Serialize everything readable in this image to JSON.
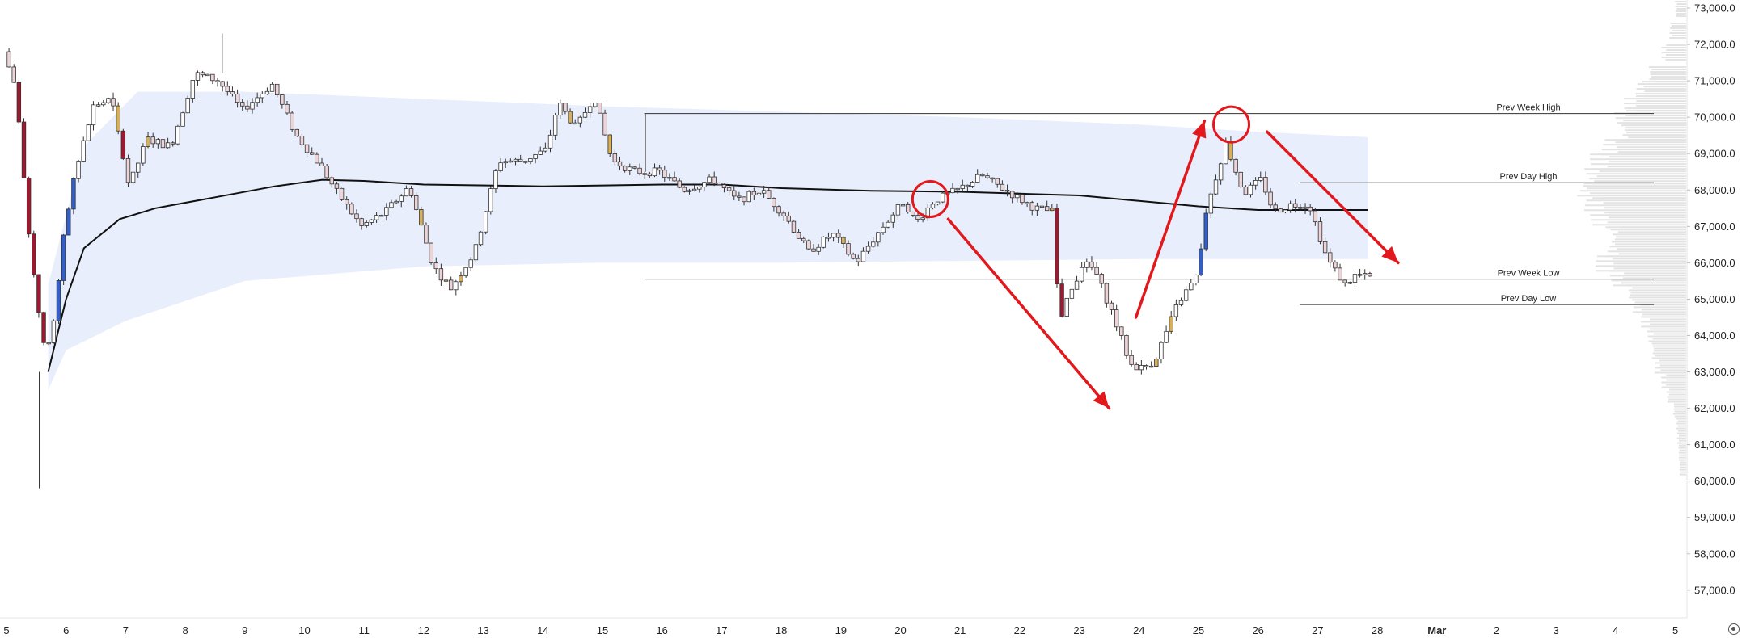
{
  "chart_data": {
    "type": "candlestick",
    "y_axis": {
      "ticks": [
        "73,000.0",
        "72,000.0",
        "71,000.0",
        "70,000.0",
        "69,000.0",
        "68,000.0",
        "67,000.0",
        "66,000.0",
        "65,000.0",
        "64,000.0",
        "63,000.0",
        "62,000.0",
        "61,000.0",
        "60,000.0",
        "59,000.0",
        "58,000.0",
        "57,000.0"
      ],
      "tick_values": [
        73000,
        72000,
        71000,
        70000,
        69000,
        68000,
        67000,
        66000,
        65000,
        64000,
        63000,
        62000,
        61000,
        60000,
        59000,
        58000,
        57000
      ],
      "range": [
        56400,
        73300
      ],
      "position": "right"
    },
    "x_axis": {
      "ticks": [
        "5",
        "6",
        "7",
        "8",
        "9",
        "10",
        "11",
        "12",
        "13",
        "14",
        "15",
        "16",
        "17",
        "18",
        "19",
        "20",
        "21",
        "22",
        "23",
        "24",
        "25",
        "26",
        "27",
        "28",
        "Mar",
        "2",
        "3",
        "4",
        "5"
      ],
      "range_days": [
        5,
        33.1
      ]
    },
    "price_path": [
      {
        "d": 5.0,
        "p": 71800
      },
      {
        "d": 5.2,
        "p": 70800
      },
      {
        "d": 5.4,
        "p": 67000
      },
      {
        "d": 5.6,
        "p": 64500
      },
      {
        "d": 5.7,
        "p": 63300
      },
      {
        "d": 5.85,
        "p": 64500
      },
      {
        "d": 6.0,
        "p": 66800
      },
      {
        "d": 6.2,
        "p": 68500
      },
      {
        "d": 6.5,
        "p": 70300
      },
      {
        "d": 6.8,
        "p": 70500
      },
      {
        "d": 7.1,
        "p": 68100
      },
      {
        "d": 7.4,
        "p": 69400
      },
      {
        "d": 7.8,
        "p": 69200
      },
      {
        "d": 8.2,
        "p": 71200
      },
      {
        "d": 8.6,
        "p": 71000
      },
      {
        "d": 9.0,
        "p": 70200
      },
      {
        "d": 9.5,
        "p": 70900
      },
      {
        "d": 9.9,
        "p": 69500
      },
      {
        "d": 10.3,
        "p": 68700
      },
      {
        "d": 10.6,
        "p": 67900
      },
      {
        "d": 11.0,
        "p": 67000
      },
      {
        "d": 11.4,
        "p": 67400
      },
      {
        "d": 11.8,
        "p": 68100
      },
      {
        "d": 12.2,
        "p": 65900
      },
      {
        "d": 12.5,
        "p": 65300
      },
      {
        "d": 12.9,
        "p": 66300
      },
      {
        "d": 13.3,
        "p": 68800
      },
      {
        "d": 13.7,
        "p": 68800
      },
      {
        "d": 14.1,
        "p": 69100
      },
      {
        "d": 14.3,
        "p": 70400
      },
      {
        "d": 14.6,
        "p": 69700
      },
      {
        "d": 14.9,
        "p": 70600
      },
      {
        "d": 15.2,
        "p": 68800
      },
      {
        "d": 15.6,
        "p": 68500
      },
      {
        "d": 16.0,
        "p": 68500
      },
      {
        "d": 16.4,
        "p": 68000
      },
      {
        "d": 16.9,
        "p": 68300
      },
      {
        "d": 17.3,
        "p": 67700
      },
      {
        "d": 17.7,
        "p": 68000
      },
      {
        "d": 18.1,
        "p": 67300
      },
      {
        "d": 18.5,
        "p": 66300
      },
      {
        "d": 18.9,
        "p": 66800
      },
      {
        "d": 19.3,
        "p": 66000
      },
      {
        "d": 19.7,
        "p": 66900
      },
      {
        "d": 20.1,
        "p": 67700
      },
      {
        "d": 20.3,
        "p": 67100
      },
      {
        "d": 20.6,
        "p": 67700
      },
      {
        "d": 21.0,
        "p": 68000
      },
      {
        "d": 21.4,
        "p": 68400
      },
      {
        "d": 21.9,
        "p": 67900
      },
      {
        "d": 22.3,
        "p": 67500
      },
      {
        "d": 22.6,
        "p": 67400
      },
      {
        "d": 22.7,
        "p": 64400
      },
      {
        "d": 22.9,
        "p": 65200
      },
      {
        "d": 23.1,
        "p": 66000
      },
      {
        "d": 23.3,
        "p": 65800
      },
      {
        "d": 23.6,
        "p": 64600
      },
      {
        "d": 23.9,
        "p": 63200
      },
      {
        "d": 24.1,
        "p": 63100
      },
      {
        "d": 24.3,
        "p": 63300
      },
      {
        "d": 24.5,
        "p": 64100
      },
      {
        "d": 24.7,
        "p": 64900
      },
      {
        "d": 25.0,
        "p": 65600
      },
      {
        "d": 25.2,
        "p": 67600
      },
      {
        "d": 25.5,
        "p": 69300
      },
      {
        "d": 25.8,
        "p": 67900
      },
      {
        "d": 26.1,
        "p": 68300
      },
      {
        "d": 26.3,
        "p": 67400
      },
      {
        "d": 26.6,
        "p": 67600
      },
      {
        "d": 26.9,
        "p": 67600
      },
      {
        "d": 27.2,
        "p": 66100
      },
      {
        "d": 27.5,
        "p": 65400
      },
      {
        "d": 27.7,
        "p": 65700
      },
      {
        "d": 27.85,
        "p": 65600
      }
    ],
    "moving_average": [
      {
        "d": 5.7,
        "p": 63000
      },
      {
        "d": 6.0,
        "p": 65000
      },
      {
        "d": 6.3,
        "p": 66400
      },
      {
        "d": 6.9,
        "p": 67200
      },
      {
        "d": 7.5,
        "p": 67500
      },
      {
        "d": 8.5,
        "p": 67800
      },
      {
        "d": 9.5,
        "p": 68100
      },
      {
        "d": 10.3,
        "p": 68280
      },
      {
        "d": 11.0,
        "p": 68250
      },
      {
        "d": 12.0,
        "p": 68150
      },
      {
        "d": 14.0,
        "p": 68100
      },
      {
        "d": 16.0,
        "p": 68150
      },
      {
        "d": 17.0,
        "p": 68150
      },
      {
        "d": 18.0,
        "p": 68050
      },
      {
        "d": 19.5,
        "p": 67980
      },
      {
        "d": 21.0,
        "p": 67950
      },
      {
        "d": 22.0,
        "p": 67900
      },
      {
        "d": 23.0,
        "p": 67850
      },
      {
        "d": 24.0,
        "p": 67700
      },
      {
        "d": 25.0,
        "p": 67550
      },
      {
        "d": 26.0,
        "p": 67450
      },
      {
        "d": 27.0,
        "p": 67450
      },
      {
        "d": 27.85,
        "p": 67450
      }
    ],
    "band_upper": [
      {
        "d": 5.7,
        "p": 65400
      },
      {
        "d": 6.3,
        "p": 69200
      },
      {
        "d": 7.2,
        "p": 70700
      },
      {
        "d": 9.0,
        "p": 70700
      },
      {
        "d": 12.0,
        "p": 70500
      },
      {
        "d": 15.0,
        "p": 70300
      },
      {
        "d": 18.0,
        "p": 70150
      },
      {
        "d": 21.0,
        "p": 70000
      },
      {
        "d": 24.0,
        "p": 69800
      },
      {
        "d": 26.0,
        "p": 69600
      },
      {
        "d": 27.85,
        "p": 69450
      }
    ],
    "band_lower": [
      {
        "d": 27.85,
        "p": 66100
      },
      {
        "d": 24.0,
        "p": 66100
      },
      {
        "d": 21.0,
        "p": 66050
      },
      {
        "d": 18.0,
        "p": 66000
      },
      {
        "d": 15.0,
        "p": 66000
      },
      {
        "d": 12.0,
        "p": 65900
      },
      {
        "d": 9.0,
        "p": 65500
      },
      {
        "d": 7.0,
        "p": 64400
      },
      {
        "d": 6.0,
        "p": 63600
      },
      {
        "d": 5.7,
        "p": 62500
      }
    ],
    "levels": [
      {
        "label": "Prev Week High",
        "price": 70100,
        "from_day": 15.7
      },
      {
        "label": "Prev Day High",
        "price": 68200,
        "from_day": 26.7
      },
      {
        "label": "Prev Week Low",
        "price": 65550,
        "from_day": 15.7
      },
      {
        "label": "Prev Day Low",
        "price": 64850,
        "from_day": 26.7
      }
    ],
    "annotations": {
      "circles": [
        {
          "d": 20.5,
          "p": 67750
        },
        {
          "d": 25.55,
          "p": 69800
        }
      ],
      "arrows": [
        {
          "from": {
            "d": 20.8,
            "p": 67200
          },
          "to": {
            "d": 23.5,
            "p": 62000
          }
        },
        {
          "from": {
            "d": 23.95,
            "p": 64500
          },
          "to": {
            "d": 25.1,
            "p": 69900
          }
        },
        {
          "from": {
            "d": 26.15,
            "p": 69600
          },
          "to": {
            "d": 28.35,
            "p": 66000
          }
        }
      ]
    },
    "volume_profile": {
      "step": 200,
      "prices": [
        73000,
        72400,
        71800,
        71200,
        70800,
        70400,
        70000,
        69600,
        69200,
        68800,
        68400,
        68000,
        67600,
        67200,
        66800,
        66400,
        66000,
        65600,
        65200,
        64800,
        64400,
        64000,
        63600,
        63200,
        62800,
        62400,
        62000,
        61600,
        61200,
        60800,
        60400
      ],
      "values": [
        0.1,
        0.15,
        0.22,
        0.35,
        0.45,
        0.55,
        0.65,
        0.6,
        0.75,
        0.85,
        0.92,
        1.0,
        0.9,
        0.85,
        0.7,
        0.72,
        0.8,
        0.68,
        0.55,
        0.48,
        0.4,
        0.35,
        0.32,
        0.28,
        0.22,
        0.18,
        0.12,
        0.09,
        0.08,
        0.07,
        0.06
      ]
    },
    "colors": {
      "up_candle": "#ffffff",
      "down_candle": "#ecd4d8",
      "wick": "#333333",
      "strong_up": "#2f5fd0",
      "strong_down": "#a01830",
      "highlight": "#d7b15a",
      "moving_average": "#111111",
      "band": "#e8eefb",
      "annotation": "#e2181c",
      "level_line": "#333333",
      "volume_profile": "#e3e3e3"
    },
    "grid": false
  }
}
